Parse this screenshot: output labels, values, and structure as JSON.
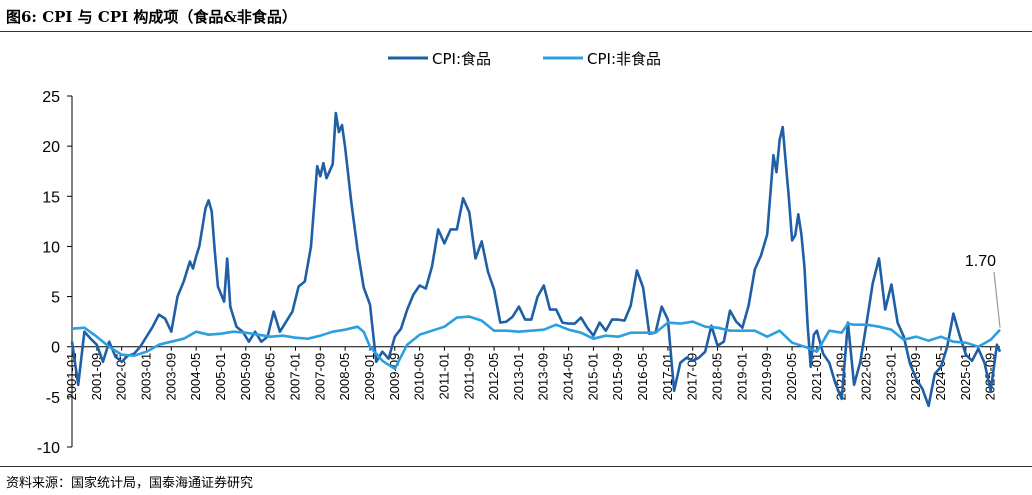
{
  "figure": {
    "title": "图6:  CPI 与 CPI 构成项（食品&非食品）",
    "source": "资料来源：国家统计局，国泰海通证券研究"
  },
  "colors": {
    "food": "#1f5fa6",
    "nonfood": "#2b9fe0",
    "axis": "#000000",
    "callout": "#999999"
  },
  "chart_data": {
    "type": "line",
    "title": "",
    "xlabel": "",
    "ylabel": "",
    "ylim": [
      -10,
      25
    ],
    "yticks": [
      -10,
      -5,
      0,
      5,
      10,
      15,
      20,
      25
    ],
    "xticks": [
      "2001-01",
      "2001-09",
      "2002-05",
      "2003-01",
      "2003-09",
      "2004-05",
      "2005-01",
      "2005-09",
      "2006-05",
      "2007-01",
      "2007-09",
      "2008-05",
      "2009-01",
      "2009-09",
      "2010-05",
      "2011-01",
      "2011-09",
      "2012-05",
      "2013-01",
      "2013-09",
      "2014-05",
      "2015-01",
      "2015-09",
      "2016-05",
      "2017-01",
      "2017-09",
      "2018-05",
      "2019-01",
      "2019-09",
      "2020-05",
      "2021-01",
      "2021-09",
      "2022-05",
      "2023-01",
      "2023-09",
      "2024-05",
      "2025-01",
      "2025-09"
    ],
    "x_start": "2001-01",
    "x_end": "2025-12",
    "grid": false,
    "legend_position": "top-center",
    "annotation": {
      "text": "1.70",
      "series": "CPI:非食品",
      "x": "2025-12",
      "y": 1.7
    },
    "series": [
      {
        "name": "CPI:食品",
        "color_key": "food",
        "points": [
          [
            "2001-01",
            0.5
          ],
          [
            "2001-03",
            -3.8
          ],
          [
            "2001-05",
            1.5
          ],
          [
            "2001-07",
            0.8
          ],
          [
            "2001-09",
            0.2
          ],
          [
            "2001-11",
            -1.5
          ],
          [
            "2002-01",
            0.5
          ],
          [
            "2002-03",
            -1.0
          ],
          [
            "2002-05",
            -1.5
          ],
          [
            "2002-07",
            -0.9
          ],
          [
            "2002-09",
            -0.7
          ],
          [
            "2002-11",
            0.0
          ],
          [
            "2003-01",
            1.0
          ],
          [
            "2003-03",
            2.0
          ],
          [
            "2003-05",
            3.2
          ],
          [
            "2003-07",
            2.8
          ],
          [
            "2003-09",
            1.5
          ],
          [
            "2003-11",
            5.0
          ],
          [
            "2004-01",
            6.5
          ],
          [
            "2004-03",
            8.5
          ],
          [
            "2004-04",
            7.8
          ],
          [
            "2004-05",
            9.0
          ],
          [
            "2004-06",
            10.0
          ],
          [
            "2004-08",
            13.8
          ],
          [
            "2004-09",
            14.6
          ],
          [
            "2004-10",
            13.5
          ],
          [
            "2004-11",
            9.5
          ],
          [
            "2004-12",
            6.0
          ],
          [
            "2005-02",
            4.5
          ],
          [
            "2005-03",
            8.8
          ],
          [
            "2005-04",
            4.0
          ],
          [
            "2005-06",
            2.0
          ],
          [
            "2005-08",
            1.5
          ],
          [
            "2005-10",
            0.5
          ],
          [
            "2005-12",
            1.5
          ],
          [
            "2006-02",
            0.5
          ],
          [
            "2006-04",
            1.0
          ],
          [
            "2006-06",
            3.5
          ],
          [
            "2006-08",
            1.5
          ],
          [
            "2006-10",
            2.5
          ],
          [
            "2006-12",
            3.5
          ],
          [
            "2007-02",
            6.0
          ],
          [
            "2007-04",
            6.5
          ],
          [
            "2007-06",
            10.0
          ],
          [
            "2007-08",
            18.0
          ],
          [
            "2007-09",
            17.0
          ],
          [
            "2007-10",
            18.3
          ],
          [
            "2007-11",
            16.8
          ],
          [
            "2007-12",
            17.5
          ],
          [
            "2008-01",
            18.2
          ],
          [
            "2008-02",
            23.3
          ],
          [
            "2008-03",
            21.4
          ],
          [
            "2008-04",
            22.1
          ],
          [
            "2008-05",
            19.9
          ],
          [
            "2008-07",
            14.4
          ],
          [
            "2008-09",
            9.7
          ],
          [
            "2008-11",
            5.9
          ],
          [
            "2009-01",
            4.2
          ],
          [
            "2009-03",
            -1.5
          ],
          [
            "2009-05",
            -0.5
          ],
          [
            "2009-07",
            -1.2
          ],
          [
            "2009-09",
            1.0
          ],
          [
            "2009-11",
            1.8
          ],
          [
            "2010-01",
            3.7
          ],
          [
            "2010-03",
            5.2
          ],
          [
            "2010-05",
            6.1
          ],
          [
            "2010-07",
            5.8
          ],
          [
            "2010-09",
            8.0
          ],
          [
            "2010-11",
            11.7
          ],
          [
            "2011-01",
            10.3
          ],
          [
            "2011-03",
            11.7
          ],
          [
            "2011-05",
            11.7
          ],
          [
            "2011-07",
            14.8
          ],
          [
            "2011-09",
            13.4
          ],
          [
            "2011-11",
            8.8
          ],
          [
            "2012-01",
            10.5
          ],
          [
            "2012-03",
            7.5
          ],
          [
            "2012-05",
            5.7
          ],
          [
            "2012-07",
            2.4
          ],
          [
            "2012-09",
            2.5
          ],
          [
            "2012-11",
            3.0
          ],
          [
            "2013-01",
            4.0
          ],
          [
            "2013-03",
            2.7
          ],
          [
            "2013-05",
            2.7
          ],
          [
            "2013-07",
            5.0
          ],
          [
            "2013-09",
            6.1
          ],
          [
            "2013-11",
            3.7
          ],
          [
            "2014-01",
            3.7
          ],
          [
            "2014-03",
            2.4
          ],
          [
            "2014-05",
            2.3
          ],
          [
            "2014-07",
            2.3
          ],
          [
            "2014-09",
            2.9
          ],
          [
            "2014-11",
            1.9
          ],
          [
            "2015-01",
            1.1
          ],
          [
            "2015-03",
            2.4
          ],
          [
            "2015-05",
            1.6
          ],
          [
            "2015-07",
            2.7
          ],
          [
            "2015-09",
            2.7
          ],
          [
            "2015-11",
            2.6
          ],
          [
            "2016-01",
            4.1
          ],
          [
            "2016-03",
            7.6
          ],
          [
            "2016-05",
            5.9
          ],
          [
            "2016-07",
            1.3
          ],
          [
            "2016-09",
            1.4
          ],
          [
            "2016-11",
            4.0
          ],
          [
            "2017-01",
            2.7
          ],
          [
            "2017-03",
            -4.4
          ],
          [
            "2017-05",
            -1.6
          ],
          [
            "2017-07",
            -1.1
          ],
          [
            "2017-09",
            -1.4
          ],
          [
            "2017-11",
            -1.1
          ],
          [
            "2018-01",
            -0.5
          ],
          [
            "2018-03",
            2.1
          ],
          [
            "2018-05",
            0.1
          ],
          [
            "2018-07",
            0.5
          ],
          [
            "2018-09",
            3.6
          ],
          [
            "2018-11",
            2.5
          ],
          [
            "2019-01",
            1.9
          ],
          [
            "2019-03",
            4.1
          ],
          [
            "2019-05",
            7.7
          ],
          [
            "2019-07",
            9.1
          ],
          [
            "2019-09",
            11.2
          ],
          [
            "2019-11",
            19.1
          ],
          [
            "2019-12",
            17.4
          ],
          [
            "2020-01",
            20.6
          ],
          [
            "2020-02",
            21.9
          ],
          [
            "2020-03",
            18.3
          ],
          [
            "2020-04",
            14.8
          ],
          [
            "2020-05",
            10.6
          ],
          [
            "2020-06",
            11.1
          ],
          [
            "2020-07",
            13.2
          ],
          [
            "2020-08",
            11.2
          ],
          [
            "2020-09",
            7.9
          ],
          [
            "2020-10",
            2.2
          ],
          [
            "2020-11",
            -2.0
          ],
          [
            "2020-12",
            1.2
          ],
          [
            "2021-01",
            1.6
          ],
          [
            "2021-03",
            -0.7
          ],
          [
            "2021-05",
            -1.6
          ],
          [
            "2021-07",
            -3.7
          ],
          [
            "2021-09",
            -5.2
          ],
          [
            "2021-11",
            2.4
          ],
          [
            "2022-01",
            -3.8
          ],
          [
            "2022-03",
            -1.5
          ],
          [
            "2022-05",
            2.3
          ],
          [
            "2022-07",
            6.3
          ],
          [
            "2022-09",
            8.8
          ],
          [
            "2022-11",
            3.7
          ],
          [
            "2023-01",
            6.2
          ],
          [
            "2023-03",
            2.4
          ],
          [
            "2023-05",
            1.0
          ],
          [
            "2023-07",
            -1.7
          ],
          [
            "2023-09",
            -3.2
          ],
          [
            "2023-11",
            -4.2
          ],
          [
            "2024-01",
            -5.9
          ],
          [
            "2024-03",
            -2.7
          ],
          [
            "2024-05",
            -2.0
          ],
          [
            "2024-07",
            0.0
          ],
          [
            "2024-09",
            3.3
          ],
          [
            "2024-11",
            1.1
          ],
          [
            "2025-01",
            -0.8
          ],
          [
            "2025-03",
            -1.4
          ],
          [
            "2025-05",
            -0.2
          ],
          [
            "2025-07",
            -1.6
          ],
          [
            "2025-09",
            -4.4
          ],
          [
            "2025-11",
            0.2
          ],
          [
            "2025-12",
            -0.5
          ]
        ]
      },
      {
        "name": "CPI:非食品",
        "color_key": "nonfood",
        "points": [
          [
            "2001-01",
            1.8
          ],
          [
            "2001-05",
            1.9
          ],
          [
            "2001-09",
            1.0
          ],
          [
            "2002-01",
            0.0
          ],
          [
            "2002-05",
            -0.8
          ],
          [
            "2002-09",
            -0.9
          ],
          [
            "2003-01",
            -0.5
          ],
          [
            "2003-05",
            0.2
          ],
          [
            "2003-09",
            0.5
          ],
          [
            "2004-01",
            0.8
          ],
          [
            "2004-05",
            1.5
          ],
          [
            "2004-09",
            1.2
          ],
          [
            "2005-01",
            1.3
          ],
          [
            "2005-05",
            1.5
          ],
          [
            "2005-09",
            1.4
          ],
          [
            "2006-01",
            1.2
          ],
          [
            "2006-05",
            1.0
          ],
          [
            "2006-09",
            1.1
          ],
          [
            "2007-01",
            0.9
          ],
          [
            "2007-05",
            0.8
          ],
          [
            "2007-09",
            1.1
          ],
          [
            "2008-01",
            1.5
          ],
          [
            "2008-05",
            1.7
          ],
          [
            "2008-09",
            2.0
          ],
          [
            "2008-11",
            1.5
          ],
          [
            "2009-01",
            0.0
          ],
          [
            "2009-05",
            -1.4
          ],
          [
            "2009-09",
            -2.2
          ],
          [
            "2009-11",
            -1.0
          ],
          [
            "2010-01",
            0.2
          ],
          [
            "2010-05",
            1.2
          ],
          [
            "2010-09",
            1.6
          ],
          [
            "2011-01",
            2.0
          ],
          [
            "2011-05",
            2.9
          ],
          [
            "2011-09",
            3.0
          ],
          [
            "2012-01",
            2.6
          ],
          [
            "2012-05",
            1.6
          ],
          [
            "2012-09",
            1.6
          ],
          [
            "2013-01",
            1.5
          ],
          [
            "2013-05",
            1.6
          ],
          [
            "2013-09",
            1.7
          ],
          [
            "2014-01",
            2.2
          ],
          [
            "2014-05",
            1.7
          ],
          [
            "2014-09",
            1.4
          ],
          [
            "2015-01",
            0.8
          ],
          [
            "2015-05",
            1.1
          ],
          [
            "2015-09",
            1.0
          ],
          [
            "2016-01",
            1.4
          ],
          [
            "2016-05",
            1.4
          ],
          [
            "2016-09",
            1.4
          ],
          [
            "2017-01",
            2.4
          ],
          [
            "2017-05",
            2.3
          ],
          [
            "2017-09",
            2.5
          ],
          [
            "2018-01",
            2.0
          ],
          [
            "2018-05",
            1.9
          ],
          [
            "2018-09",
            1.6
          ],
          [
            "2019-01",
            1.6
          ],
          [
            "2019-05",
            1.6
          ],
          [
            "2019-09",
            1.0
          ],
          [
            "2020-01",
            1.6
          ],
          [
            "2020-05",
            0.4
          ],
          [
            "2020-09",
            0.0
          ],
          [
            "2021-01",
            -0.5
          ],
          [
            "2021-05",
            1.6
          ],
          [
            "2021-09",
            1.4
          ],
          [
            "2021-11",
            2.3
          ],
          [
            "2022-01",
            2.2
          ],
          [
            "2022-05",
            2.2
          ],
          [
            "2022-09",
            2.0
          ],
          [
            "2023-01",
            1.7
          ],
          [
            "2023-05",
            0.7
          ],
          [
            "2023-09",
            1.0
          ],
          [
            "2024-01",
            0.6
          ],
          [
            "2024-05",
            1.0
          ],
          [
            "2024-09",
            0.5
          ],
          [
            "2025-01",
            0.4
          ],
          [
            "2025-05",
            0.0
          ],
          [
            "2025-09",
            0.7
          ],
          [
            "2025-12",
            1.7
          ]
        ]
      }
    ]
  }
}
